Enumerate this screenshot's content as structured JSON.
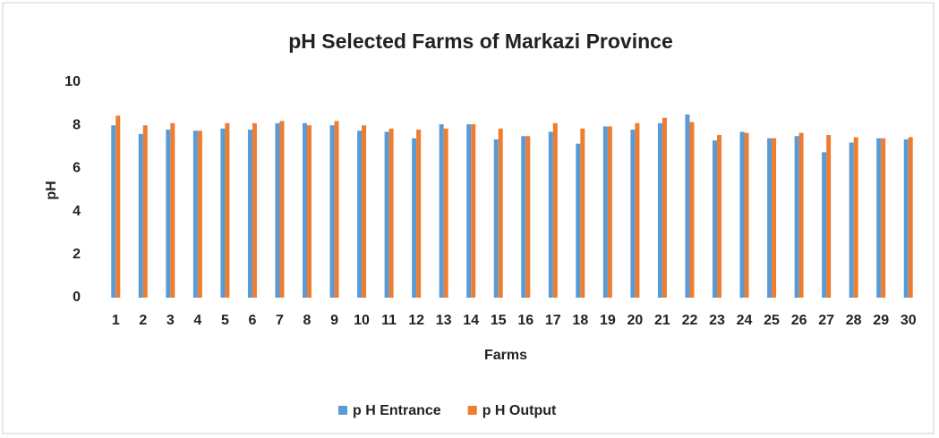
{
  "chart_data": {
    "type": "bar",
    "title": "pH Selected Farms of Markazi Province",
    "x_label": "Farms",
    "y_label": "pH",
    "categories": [
      "1",
      "2",
      "3",
      "4",
      "5",
      "6",
      "7",
      "8",
      "9",
      "10",
      "11",
      "12",
      "13",
      "14",
      "15",
      "16",
      "17",
      "18",
      "19",
      "20",
      "21",
      "22",
      "23",
      "24",
      "25",
      "26",
      "27",
      "28",
      "29",
      "30"
    ],
    "series": [
      {
        "name": "p H Entrance",
        "color": "#5b9bd5",
        "values": [
          8.0,
          7.6,
          7.8,
          7.75,
          7.85,
          7.8,
          8.1,
          8.1,
          8.0,
          7.75,
          7.7,
          7.4,
          8.05,
          8.05,
          7.35,
          7.5,
          7.7,
          7.15,
          7.95,
          7.8,
          8.1,
          8.5,
          7.3,
          7.7,
          7.4,
          7.5,
          6.75,
          7.2,
          7.4,
          7.35
        ]
      },
      {
        "name": "p H Output",
        "color": "#ed7d31",
        "values": [
          8.45,
          8.0,
          8.1,
          7.75,
          8.1,
          8.1,
          8.2,
          8.0,
          8.2,
          8.0,
          7.85,
          7.8,
          7.85,
          8.05,
          7.85,
          7.5,
          8.1,
          7.85,
          7.95,
          8.1,
          8.35,
          8.15,
          7.55,
          7.65,
          7.4,
          7.65,
          7.55,
          7.45,
          7.4,
          7.45
        ]
      }
    ],
    "ylim": [
      0,
      10
    ],
    "yticks": [
      0,
      2,
      4,
      6,
      8,
      10
    ],
    "grid": false,
    "legend": "bottom"
  }
}
